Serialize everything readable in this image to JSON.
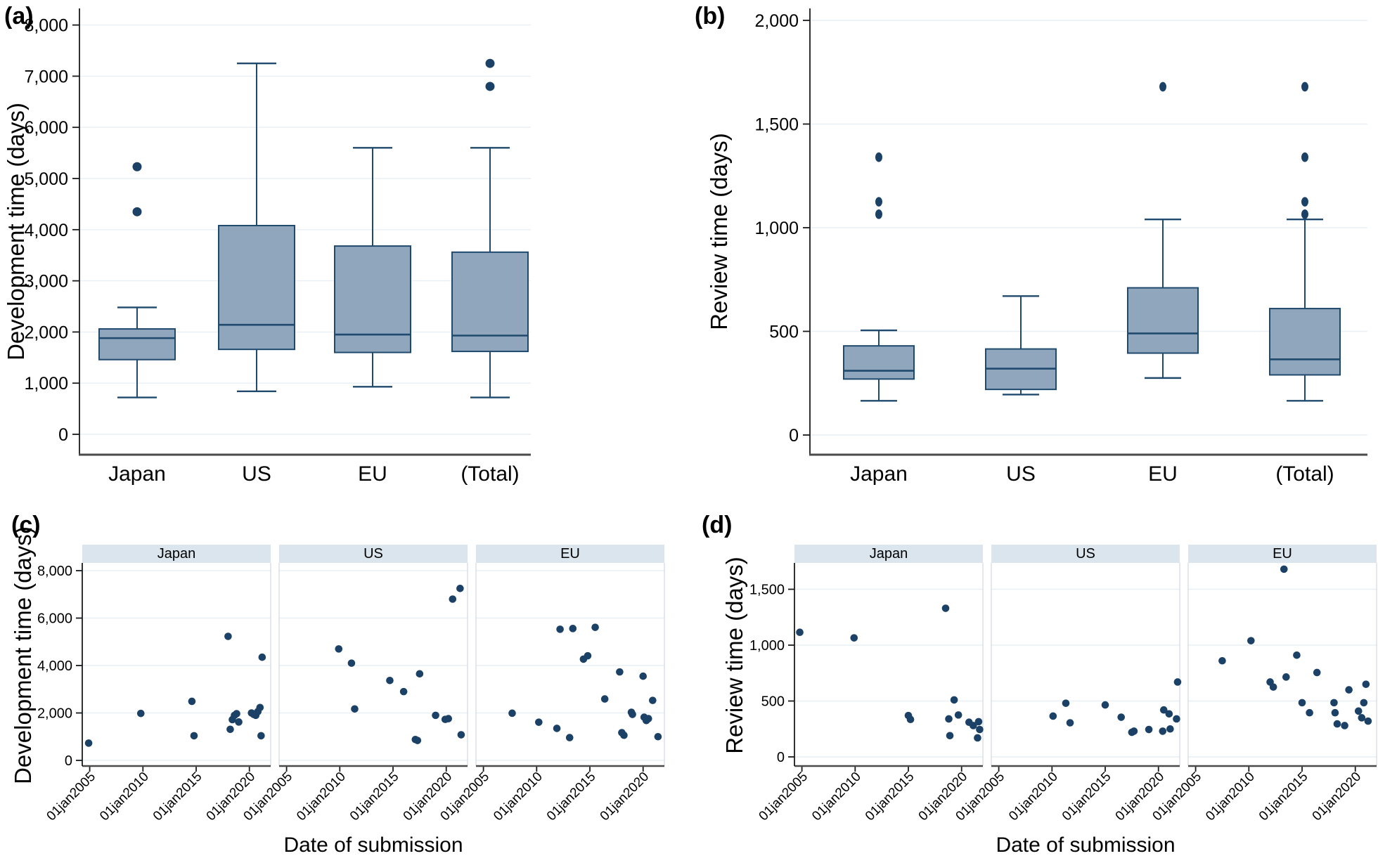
{
  "figure": {
    "panel_letters": [
      "(a)",
      "(b)",
      "(c)",
      "(d)"
    ],
    "colors": {
      "box_fill": "#8FA6BD",
      "box_stroke": "#1F4A6E",
      "dot": "#1C4166",
      "facet_header_fill": "#DAE5EE",
      "gridline": "#E9EFF5",
      "axis_line": "#1A1A1A",
      "baseline": "#4A4A4A",
      "text": "#000000"
    }
  },
  "chart_data": [
    {
      "id": "a",
      "panel_label": "(a)",
      "type": "box",
      "ylabel": "Development time (days)",
      "yticks": [
        0,
        1000,
        2000,
        3000,
        4000,
        5000,
        6000,
        7000,
        8000
      ],
      "ytick_labels": [
        "0",
        "1,000",
        "2,000",
        "3,000",
        "4,000",
        "5,000",
        "6,000",
        "7,000",
        "8,000"
      ],
      "ylim": [
        0,
        8000
      ],
      "categories": [
        "Japan",
        "US",
        "EU",
        "(Total)"
      ],
      "boxes": [
        {
          "category": "Japan",
          "whisker_low": 720,
          "q1": 1460,
          "median": 1880,
          "q3": 2060,
          "whisker_high": 2480,
          "outliers": [
            4350,
            5230
          ]
        },
        {
          "category": "US",
          "whisker_low": 840,
          "q1": 1660,
          "median": 2140,
          "q3": 4080,
          "whisker_high": 7250,
          "outliers": []
        },
        {
          "category": "EU",
          "whisker_low": 930,
          "q1": 1600,
          "median": 1950,
          "q3": 3680,
          "whisker_high": 5600,
          "outliers": []
        },
        {
          "category": "(Total)",
          "whisker_low": 720,
          "q1": 1620,
          "median": 1930,
          "q3": 3560,
          "whisker_high": 5600,
          "outliers": [
            6800,
            7250
          ]
        }
      ]
    },
    {
      "id": "b",
      "panel_label": "(b)",
      "type": "box",
      "ylabel": "Review time (days)",
      "yticks": [
        0,
        500,
        1000,
        1500,
        2000
      ],
      "ytick_labels": [
        "0",
        "500",
        "1,000",
        "1,500",
        "2,000"
      ],
      "ylim": [
        0,
        2000
      ],
      "categories": [
        "Japan",
        "US",
        "EU",
        "(Total)"
      ],
      "boxes": [
        {
          "category": "Japan",
          "whisker_low": 165,
          "q1": 270,
          "median": 310,
          "q3": 430,
          "whisker_high": 505,
          "outliers": [
            1065,
            1125,
            1340
          ]
        },
        {
          "category": "US",
          "whisker_low": 195,
          "q1": 220,
          "median": 320,
          "q3": 415,
          "whisker_high": 670,
          "outliers": []
        },
        {
          "category": "EU",
          "whisker_low": 275,
          "q1": 395,
          "median": 490,
          "q3": 710,
          "whisker_high": 1040,
          "outliers": [
            1680
          ]
        },
        {
          "category": "(Total)",
          "whisker_low": 165,
          "q1": 290,
          "median": 365,
          "q3": 610,
          "whisker_high": 1040,
          "outliers": [
            1065,
            1125,
            1340,
            1680
          ]
        }
      ]
    },
    {
      "id": "c",
      "panel_label": "(c)",
      "type": "scatter",
      "ylabel": "Development time (days)",
      "xlabel": "Date of submission",
      "yticks": [
        0,
        2000,
        4000,
        6000,
        8000
      ],
      "ytick_labels": [
        "0",
        "2,000",
        "4,000",
        "6,000",
        "8,000"
      ],
      "ylim": [
        0,
        8000
      ],
      "xlim": [
        2004.3,
        2022.0
      ],
      "xticks": [
        {
          "label": "01jan2005",
          "year": 2005
        },
        {
          "label": "01jan2010",
          "year": 2010
        },
        {
          "label": "01jan2015",
          "year": 2015
        },
        {
          "label": "01jan2020",
          "year": 2020
        }
      ],
      "facets": [
        {
          "label": "Japan",
          "points": [
            [
              2004.9,
              730
            ],
            [
              2009.8,
              1980
            ],
            [
              2014.6,
              2490
            ],
            [
              2014.8,
              1040
            ],
            [
              2018.0,
              5230
            ],
            [
              2018.2,
              1310
            ],
            [
              2018.4,
              1720
            ],
            [
              2018.6,
              1900
            ],
            [
              2018.8,
              1970
            ],
            [
              2019.0,
              1620
            ],
            [
              2020.2,
              2000
            ],
            [
              2020.4,
              1940
            ],
            [
              2020.6,
              1900
            ],
            [
              2020.8,
              2060
            ],
            [
              2021.0,
              2230
            ],
            [
              2021.2,
              4350
            ],
            [
              2021.1,
              1040
            ]
          ]
        },
        {
          "label": "US",
          "points": [
            [
              2009.9,
              4700
            ],
            [
              2011.1,
              4100
            ],
            [
              2011.4,
              2170
            ],
            [
              2014.7,
              3370
            ],
            [
              2016.0,
              2900
            ],
            [
              2017.1,
              880
            ],
            [
              2017.3,
              840
            ],
            [
              2017.5,
              3650
            ],
            [
              2019.0,
              1900
            ],
            [
              2019.9,
              1730
            ],
            [
              2020.2,
              1760
            ],
            [
              2020.6,
              6800
            ],
            [
              2021.3,
              7250
            ],
            [
              2021.4,
              1080
            ]
          ]
        },
        {
          "label": "EU",
          "points": [
            [
              2007.7,
              1990
            ],
            [
              2010.2,
              1610
            ],
            [
              2011.9,
              1350
            ],
            [
              2012.2,
              5530
            ],
            [
              2013.1,
              960
            ],
            [
              2013.4,
              5560
            ],
            [
              2014.4,
              4270
            ],
            [
              2014.8,
              4410
            ],
            [
              2015.5,
              5610
            ],
            [
              2016.4,
              2590
            ],
            [
              2017.8,
              3730
            ],
            [
              2018.0,
              1170
            ],
            [
              2018.2,
              1060
            ],
            [
              2018.9,
              2030
            ],
            [
              2019.0,
              1940
            ],
            [
              2020.0,
              3550
            ],
            [
              2020.1,
              1820
            ],
            [
              2020.3,
              1680
            ],
            [
              2020.5,
              1760
            ],
            [
              2020.9,
              2530
            ],
            [
              2021.4,
              1000
            ]
          ]
        }
      ]
    },
    {
      "id": "d",
      "panel_label": "(d)",
      "type": "scatter",
      "ylabel": "Review time (days)",
      "xlabel": "Date of submission",
      "yticks": [
        0,
        500,
        1000,
        1500
      ],
      "ytick_labels": [
        "0",
        "500",
        "1,000",
        "1,500"
      ],
      "ylim": [
        0,
        1750
      ],
      "xlim": [
        2004.3,
        2022.0
      ],
      "xticks": [
        {
          "label": "01jan2005",
          "year": 2005
        },
        {
          "label": "01jan2010",
          "year": 2010
        },
        {
          "label": "01jan2015",
          "year": 2015
        },
        {
          "label": "01jan2020",
          "year": 2020
        }
      ],
      "facets": [
        {
          "label": "Japan",
          "points": [
            [
              2004.8,
              1115
            ],
            [
              2009.9,
              1065
            ],
            [
              2015.0,
              370
            ],
            [
              2015.2,
              335
            ],
            [
              2018.5,
              1330
            ],
            [
              2018.8,
              340
            ],
            [
              2018.9,
              190
            ],
            [
              2019.3,
              510
            ],
            [
              2019.7,
              375
            ],
            [
              2020.7,
              310
            ],
            [
              2021.1,
              280
            ],
            [
              2021.5,
              170
            ],
            [
              2021.6,
              315
            ],
            [
              2021.7,
              245
            ]
          ]
        },
        {
          "label": "US",
          "points": [
            [
              2010.1,
              365
            ],
            [
              2011.3,
              480
            ],
            [
              2011.7,
              305
            ],
            [
              2015.0,
              465
            ],
            [
              2016.5,
              355
            ],
            [
              2017.5,
              220
            ],
            [
              2017.7,
              230
            ],
            [
              2019.1,
              245
            ],
            [
              2020.4,
              230
            ],
            [
              2020.5,
              420
            ],
            [
              2021.0,
              385
            ],
            [
              2021.1,
              250
            ],
            [
              2021.7,
              340
            ],
            [
              2021.8,
              670
            ]
          ]
        },
        {
          "label": "EU",
          "points": [
            [
              2007.5,
              860
            ],
            [
              2010.2,
              1040
            ],
            [
              2012.0,
              670
            ],
            [
              2012.3,
              625
            ],
            [
              2013.3,
              1680
            ],
            [
              2013.5,
              715
            ],
            [
              2014.5,
              910
            ],
            [
              2015.0,
              485
            ],
            [
              2015.7,
              395
            ],
            [
              2016.4,
              755
            ],
            [
              2018.0,
              485
            ],
            [
              2018.1,
              395
            ],
            [
              2018.3,
              295
            ],
            [
              2019.0,
              280
            ],
            [
              2019.4,
              600
            ],
            [
              2020.3,
              410
            ],
            [
              2020.6,
              350
            ],
            [
              2020.8,
              485
            ],
            [
              2021.0,
              650
            ],
            [
              2021.2,
              320
            ]
          ]
        }
      ]
    }
  ]
}
